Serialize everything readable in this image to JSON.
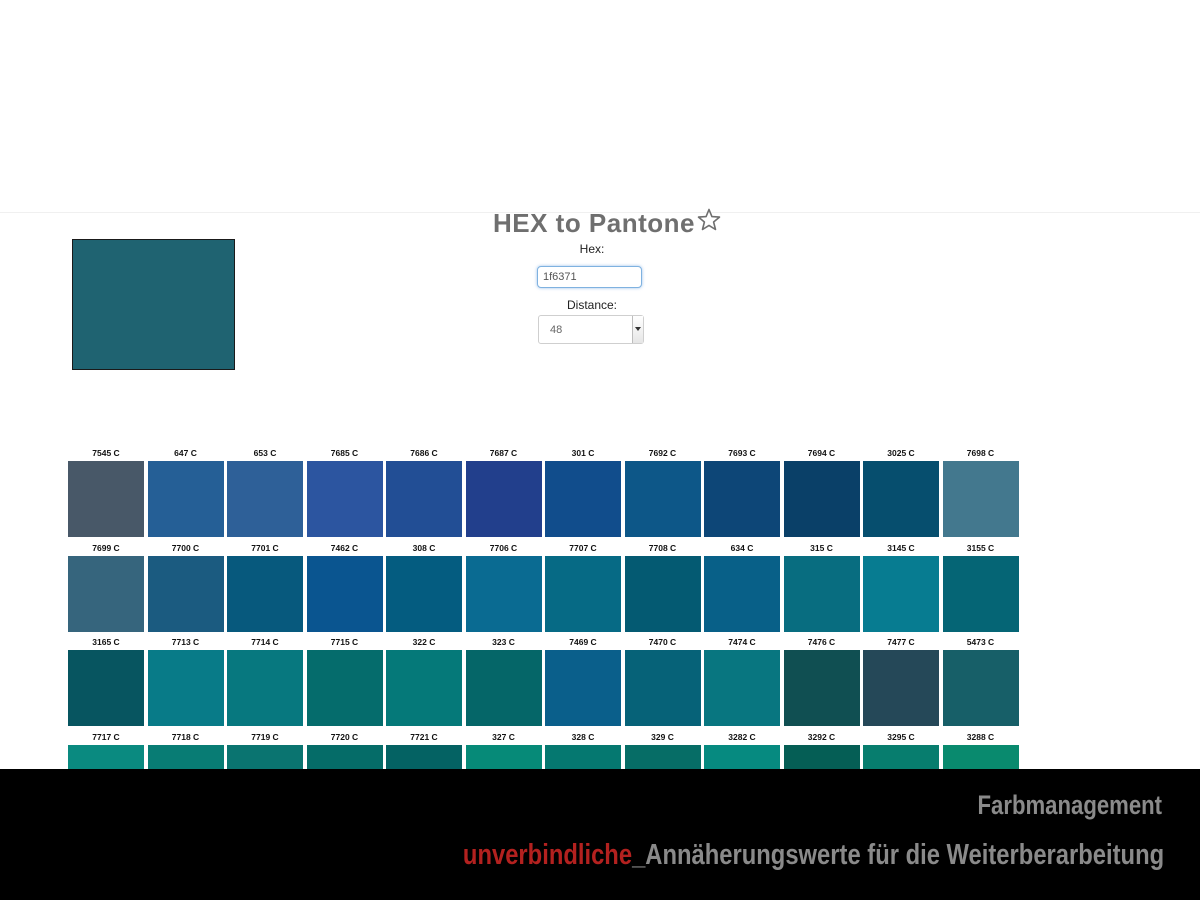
{
  "header": {
    "title": "HEX to Pantone",
    "star_icon": "star-outline-icon"
  },
  "preview": {
    "color": "#1f6371"
  },
  "form": {
    "hex_label": "Hex:",
    "hex_value": "1f6371",
    "distance_label": "Distance:",
    "distance_value": "48"
  },
  "swatches": [
    [
      {
        "label": "7545 C",
        "color": "#485868"
      },
      {
        "label": "647 C",
        "color": "#255f96"
      },
      {
        "label": "653 C",
        "color": "#2e6098"
      },
      {
        "label": "7685 C",
        "color": "#2c55a0"
      },
      {
        "label": "7686 C",
        "color": "#224e95"
      },
      {
        "label": "7687 C",
        "color": "#223f8c"
      },
      {
        "label": "301 C",
        "color": "#114d8c"
      },
      {
        "label": "7692 C",
        "color": "#0d5788"
      },
      {
        "label": "7693 C",
        "color": "#0d4677"
      },
      {
        "label": "7694 C",
        "color": "#0a4068"
      },
      {
        "label": "3025 C",
        "color": "#064e6e"
      },
      {
        "label": "7698 C",
        "color": "#43788e"
      }
    ],
    [
      {
        "label": "7699 C",
        "color": "#36657d"
      },
      {
        "label": "7700 C",
        "color": "#1b5b80"
      },
      {
        "label": "7701 C",
        "color": "#07597d"
      },
      {
        "label": "7462 C",
        "color": "#0a5590"
      },
      {
        "label": "308 C",
        "color": "#045c80"
      },
      {
        "label": "7706 C",
        "color": "#0a6b92"
      },
      {
        "label": "7707 C",
        "color": "#066a85"
      },
      {
        "label": "7708 C",
        "color": "#045a72"
      },
      {
        "label": "634 C",
        "color": "#086088"
      },
      {
        "label": "315 C",
        "color": "#086d80"
      },
      {
        "label": "3145 C",
        "color": "#077c91"
      },
      {
        "label": "3155 C",
        "color": "#056575"
      }
    ],
    [
      {
        "label": "3165 C",
        "color": "#075560"
      },
      {
        "label": "7713 C",
        "color": "#087b88"
      },
      {
        "label": "7714 C",
        "color": "#07787f"
      },
      {
        "label": "7715 C",
        "color": "#056c6c"
      },
      {
        "label": "322 C",
        "color": "#057979"
      },
      {
        "label": "323 C",
        "color": "#056668"
      },
      {
        "label": "7469 C",
        "color": "#0a5f8b"
      },
      {
        "label": "7470 C",
        "color": "#066278"
      },
      {
        "label": "7474 C",
        "color": "#087680"
      },
      {
        "label": "7476 C",
        "color": "#104f52"
      },
      {
        "label": "7477 C",
        "color": "#254858"
      },
      {
        "label": "5473 C",
        "color": "#175f68"
      }
    ],
    [
      {
        "label": "7717 C",
        "color": "#0a8a80"
      },
      {
        "label": "7718 C",
        "color": "#087c74"
      },
      {
        "label": "7719 C",
        "color": "#0a7470"
      },
      {
        "label": "7720 C",
        "color": "#056c68"
      },
      {
        "label": "7721 C",
        "color": "#046263"
      },
      {
        "label": "327 C",
        "color": "#068a78"
      },
      {
        "label": "328 C",
        "color": "#057870"
      },
      {
        "label": "329 C",
        "color": "#066d66"
      },
      {
        "label": "3282 C",
        "color": "#068a80"
      },
      {
        "label": "3292 C",
        "color": "#055e55"
      },
      {
        "label": "3295 C",
        "color": "#077d6e"
      },
      {
        "label": "3288 C",
        "color": "#098a6e"
      }
    ]
  ],
  "banner": {
    "line1": "Farbmanagement",
    "line2_accent": "unverbindliche",
    "line2_rest": "_Annäherungswerte für die Weiterberarbeitung",
    "accent_color": "#b3211f"
  }
}
